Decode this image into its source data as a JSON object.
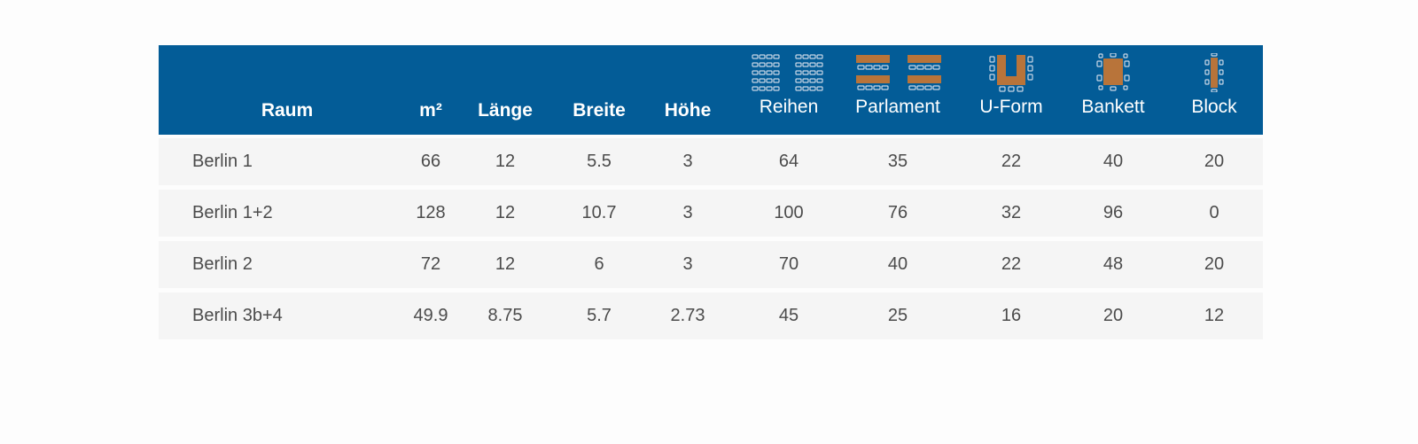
{
  "table": {
    "headers": {
      "raum": "Raum",
      "m2": "m²",
      "laenge": "Länge",
      "breite": "Breite",
      "hoehe": "Höhe",
      "reihen": "Reihen",
      "parlament": "Parlament",
      "uform": "U-Form",
      "bankett": "Bankett",
      "block": "Block"
    },
    "header_icons": {
      "reihen": "theater-seating-icon",
      "parlament": "classroom-seating-icon",
      "uform": "u-shape-seating-icon",
      "bankett": "banquet-seating-icon",
      "block": "block-seating-icon"
    },
    "rows": [
      {
        "raum": "Berlin 1",
        "m2": "66",
        "laenge": "12",
        "breite": "5.5",
        "hoehe": "3",
        "reihen": "64",
        "parlament": "35",
        "uform": "22",
        "bankett": "40",
        "block": "20"
      },
      {
        "raum": "Berlin 1+2",
        "m2": "128",
        "laenge": "12",
        "breite": "10.7",
        "hoehe": "3",
        "reihen": "100",
        "parlament": "76",
        "uform": "32",
        "bankett": "96",
        "block": "0"
      },
      {
        "raum": "Berlin 2",
        "m2": "72",
        "laenge": "12",
        "breite": "6",
        "hoehe": "3",
        "reihen": "70",
        "parlament": "40",
        "uform": "22",
        "bankett": "48",
        "block": "20"
      },
      {
        "raum": "Berlin 3b+4",
        "m2": "49.9",
        "laenge": "8.75",
        "breite": "5.7",
        "hoehe": "2.73",
        "reihen": "45",
        "parlament": "25",
        "uform": "16",
        "bankett": "20",
        "block": "12"
      }
    ]
  },
  "colors": {
    "header_bg": "#035c97",
    "row_bg": "#f5f5f5",
    "table_wood": "#b8743a",
    "chair_outline": "#c8d6e6"
  }
}
